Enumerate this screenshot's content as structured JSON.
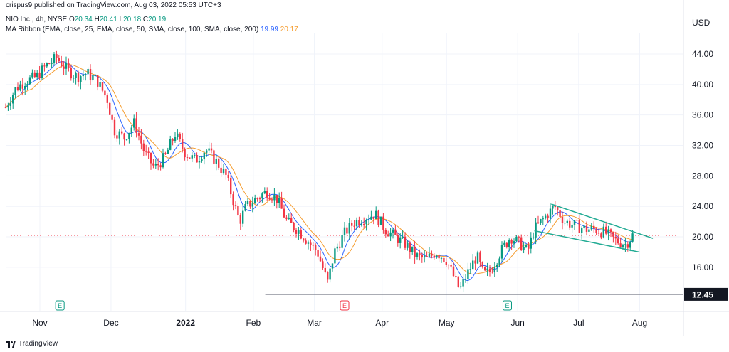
{
  "header": {
    "published": "crispus9 published on TradingView.com, Aug 03, 2022 05:53 UTC+3",
    "symbol": "NIO Inc., 4h, NYSE",
    "ohlc": [
      {
        "label": "O",
        "value": "20.34"
      },
      {
        "label": "H",
        "value": "20.41"
      },
      {
        "label": "L",
        "value": "20.18"
      },
      {
        "label": "C",
        "value": "20.19"
      }
    ],
    "indicator": "MA Ribbon (EMA, close, 25, EMA, close, 50, SMA, close, 100, SMA, close, 200)",
    "ma_values": [
      "19.99",
      "20.17"
    ]
  },
  "currency": "USD",
  "support_price": "12.45",
  "footer": {
    "brand": "TradingView"
  },
  "chart_data": {
    "type": "candlestick",
    "y_ticks": [
      44,
      40,
      36,
      32,
      28,
      24,
      20,
      16
    ],
    "y_tick_labels": [
      "44.00",
      "40.00",
      "36.00",
      "32.00",
      "28.00",
      "24.00",
      "20.00",
      "16.00"
    ],
    "ylim": [
      10.2,
      46.8
    ],
    "x_labels": [
      "Nov",
      "Dec",
      "2022",
      "Feb",
      "Mar",
      "Apr",
      "May",
      "Jun",
      "Jul",
      "Aug"
    ],
    "x_label_positions": [
      0.0,
      0.105,
      0.215,
      0.315,
      0.405,
      0.505,
      0.6,
      0.705,
      0.795,
      0.885
    ],
    "current_price": 20.19,
    "support_level": 12.45,
    "price_path": [
      [
        0.0,
        37.0
      ],
      [
        0.015,
        39.5
      ],
      [
        0.03,
        40.5
      ],
      [
        0.045,
        41.0
      ],
      [
        0.06,
        42.5
      ],
      [
        0.075,
        43.5
      ],
      [
        0.09,
        42.0
      ],
      [
        0.105,
        41.0
      ],
      [
        0.12,
        41.5
      ],
      [
        0.135,
        40.5
      ],
      [
        0.15,
        38.0
      ],
      [
        0.16,
        34.0
      ],
      [
        0.175,
        33.0
      ],
      [
        0.19,
        35.0
      ],
      [
        0.205,
        31.0
      ],
      [
        0.22,
        29.0
      ],
      [
        0.235,
        30.5
      ],
      [
        0.25,
        33.5
      ],
      [
        0.265,
        31.0
      ],
      [
        0.28,
        30.0
      ],
      [
        0.295,
        31.5
      ],
      [
        0.31,
        30.0
      ],
      [
        0.325,
        28.0
      ],
      [
        0.335,
        25.0
      ],
      [
        0.345,
        22.0
      ],
      [
        0.355,
        24.0
      ],
      [
        0.37,
        25.0
      ],
      [
        0.385,
        26.0
      ],
      [
        0.4,
        25.0
      ],
      [
        0.415,
        22.0
      ],
      [
        0.43,
        21.0
      ],
      [
        0.445,
        19.5
      ],
      [
        0.46,
        18.0
      ],
      [
        0.475,
        14.0
      ],
      [
        0.485,
        18.0
      ],
      [
        0.5,
        20.5
      ],
      [
        0.515,
        22.0
      ],
      [
        0.53,
        22.5
      ],
      [
        0.545,
        23.0
      ],
      [
        0.56,
        21.0
      ],
      [
        0.575,
        20.0
      ],
      [
        0.59,
        19.0
      ],
      [
        0.605,
        17.5
      ],
      [
        0.62,
        17.0
      ],
      [
        0.635,
        18.0
      ],
      [
        0.65,
        17.0
      ],
      [
        0.66,
        15.0
      ],
      [
        0.67,
        13.0
      ],
      [
        0.68,
        15.0
      ],
      [
        0.695,
        17.5
      ],
      [
        0.705,
        15.0
      ],
      [
        0.715,
        15.5
      ],
      [
        0.73,
        18.0
      ],
      [
        0.745,
        20.0
      ],
      [
        0.76,
        19.0
      ],
      [
        0.77,
        18.0
      ],
      [
        0.78,
        21.0
      ],
      [
        0.795,
        22.5
      ],
      [
        0.81,
        24.0
      ],
      [
        0.825,
        22.0
      ],
      [
        0.84,
        21.5
      ],
      [
        0.855,
        21.0
      ],
      [
        0.87,
        21.0
      ],
      [
        0.885,
        20.5
      ],
      [
        0.9,
        19.5
      ],
      [
        0.915,
        19.0
      ],
      [
        0.925,
        20.2
      ]
    ],
    "trendlines": [
      {
        "name": "upper",
        "from": [
          0.805,
          24.3
        ],
        "to": [
          0.955,
          19.8
        ],
        "color": "#22ab94"
      },
      {
        "name": "lower",
        "from": [
          0.78,
          20.8
        ],
        "to": [
          0.935,
          18.0
        ],
        "color": "#22ab94"
      }
    ],
    "event_markers": [
      {
        "x": 0.08,
        "label": "E",
        "color": "#089981"
      },
      {
        "x": 0.5,
        "label": "E",
        "color": "#f23645"
      },
      {
        "x": 0.74,
        "label": "E",
        "color": "#089981"
      }
    ]
  }
}
